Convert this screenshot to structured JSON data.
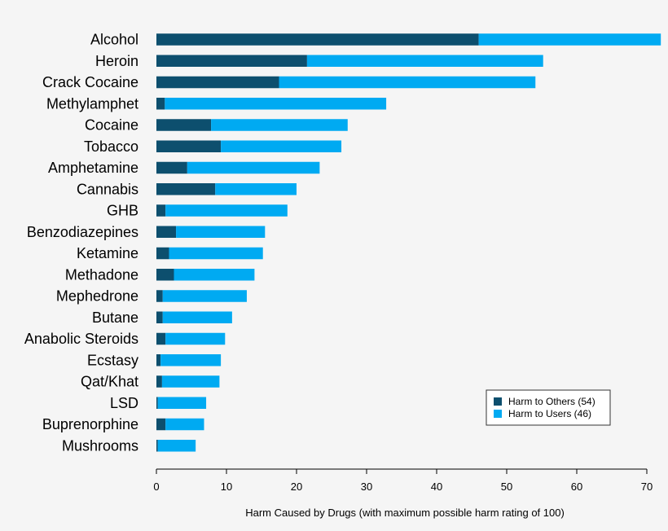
{
  "chart_data": {
    "type": "bar",
    "orientation": "horizontal",
    "stacked": true,
    "categories": [
      "Alcohol",
      "Heroin",
      "Crack Cocaine",
      "Methylamphet",
      "Cocaine",
      "Tobacco",
      "Amphetamine",
      "Cannabis",
      "GHB",
      "Benzodiazepines",
      "Ketamine",
      "Methadone",
      "Mephedrone",
      "Butane",
      "Anabolic Steroids",
      "Ecstasy",
      "Qat/Khat",
      "LSD",
      "Buprenorphine",
      "Mushrooms"
    ],
    "series": [
      {
        "name": "Harm to Others (54)",
        "color": "#0d4f6e",
        "values": [
          46,
          21.5,
          17.5,
          1.2,
          7.8,
          9.2,
          4.4,
          8.4,
          1.3,
          2.8,
          1.8,
          2.5,
          0.9,
          0.9,
          1.3,
          0.6,
          0.8,
          0.2,
          1.3,
          0.2
        ]
      },
      {
        "name": "Harm to Users (46)",
        "color": "#00aaf2",
        "values": [
          26,
          33.7,
          36.6,
          31.6,
          19.5,
          17.2,
          18.9,
          11.6,
          17.4,
          12.7,
          13.4,
          11.5,
          12.0,
          9.9,
          8.5,
          8.6,
          8.2,
          6.9,
          5.5,
          5.4
        ]
      }
    ],
    "title": "",
    "xlabel": "Harm Caused by Drugs (with maximum possible harm rating of 100)",
    "ylabel": "",
    "xlim": [
      0,
      72
    ],
    "xticks": [
      0,
      10,
      20,
      30,
      40,
      50,
      60,
      70
    ],
    "grid": false,
    "legend_position": "bottom-right"
  }
}
